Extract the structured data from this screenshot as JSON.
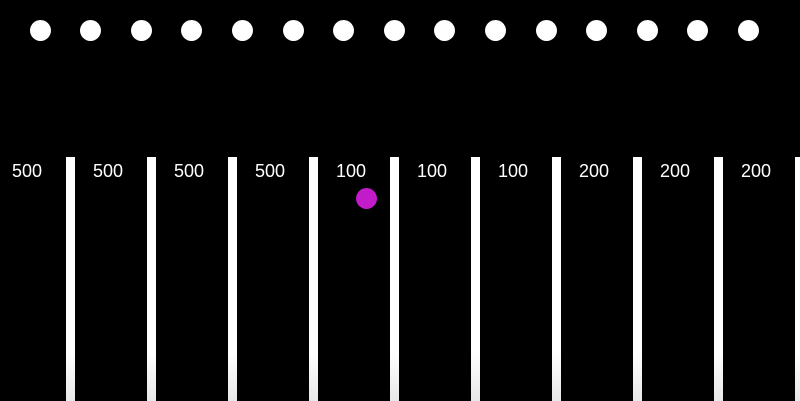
{
  "game": {
    "peg_count": 15,
    "peg_color": "#ffffff",
    "slot_values": [
      "500",
      "500",
      "500",
      "500",
      "100",
      "100",
      "100",
      "200",
      "200",
      "200"
    ],
    "ball": {
      "color": "#c21bc9",
      "slot_index": 4
    }
  }
}
